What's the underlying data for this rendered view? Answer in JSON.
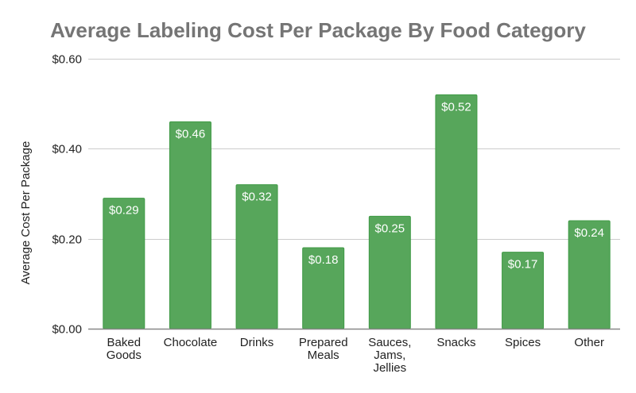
{
  "chart_data": {
    "type": "bar",
    "title": "Average Labeling Cost Per Package By Food Category",
    "xlabel": "",
    "ylabel": "Average Cost Per Package",
    "ylim": [
      0,
      0.6
    ],
    "yticks": [
      0,
      0.2,
      0.4,
      0.6
    ],
    "ytick_labels": [
      "$0.00",
      "$0.20",
      "$0.40",
      "$0.60"
    ],
    "grid": true,
    "legend": "none",
    "categories": [
      [
        "Baked",
        "Goods"
      ],
      [
        "Chocolate"
      ],
      [
        "Drinks"
      ],
      [
        "Prepared",
        "Meals"
      ],
      [
        "Sauces,",
        "Jams,",
        "Jellies"
      ],
      [
        "Snacks"
      ],
      [
        "Spices"
      ],
      [
        "Other"
      ]
    ],
    "category_names": [
      "Baked Goods",
      "Chocolate",
      "Drinks",
      "Prepared Meals",
      "Sauces, Jams, Jellies",
      "Snacks",
      "Spices",
      "Other"
    ],
    "values": [
      0.29,
      0.46,
      0.32,
      0.18,
      0.25,
      0.52,
      0.17,
      0.24
    ],
    "data_labels": [
      "$0.29",
      "$0.46",
      "$0.32",
      "$0.18",
      "$0.25",
      "$0.52",
      "$0.17",
      "$0.24"
    ],
    "colors": {
      "bar": "#57a65b",
      "bar_edge": "#3f9a45",
      "grid": "#cccccc",
      "axis": "#888888",
      "title": "#757575"
    }
  }
}
